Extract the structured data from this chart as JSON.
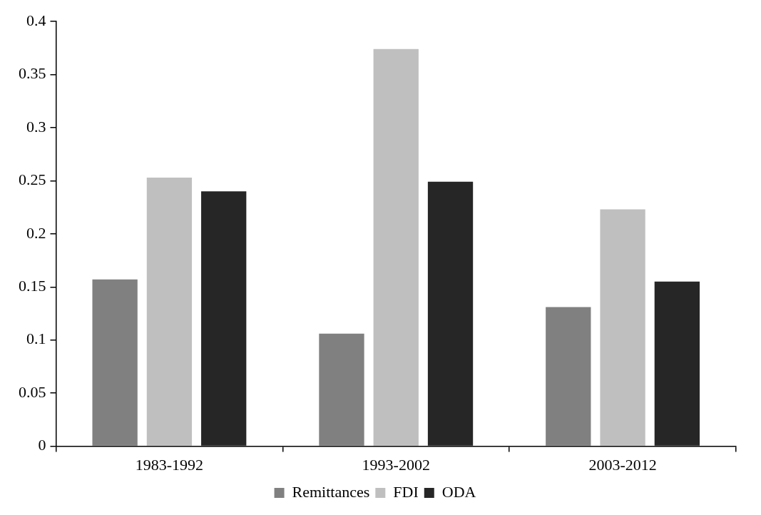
{
  "chart_data": {
    "type": "bar",
    "categories": [
      "1983-1992",
      "1993-2002",
      "2003-2012"
    ],
    "series": [
      {
        "name": "Remittances",
        "color": "#808080",
        "values": [
          0.157,
          0.106,
          0.131
        ]
      },
      {
        "name": "FDI",
        "color": "#bfbfbf",
        "values": [
          0.253,
          0.374,
          0.223
        ]
      },
      {
        "name": "ODA",
        "color": "#262626",
        "values": [
          0.24,
          0.249,
          0.155
        ]
      }
    ],
    "ylim": [
      0,
      0.4
    ],
    "yticks": [
      0,
      0.05,
      0.1,
      0.15,
      0.2,
      0.25,
      0.3,
      0.35,
      0.4
    ],
    "grid": false,
    "legend": "bottom"
  }
}
